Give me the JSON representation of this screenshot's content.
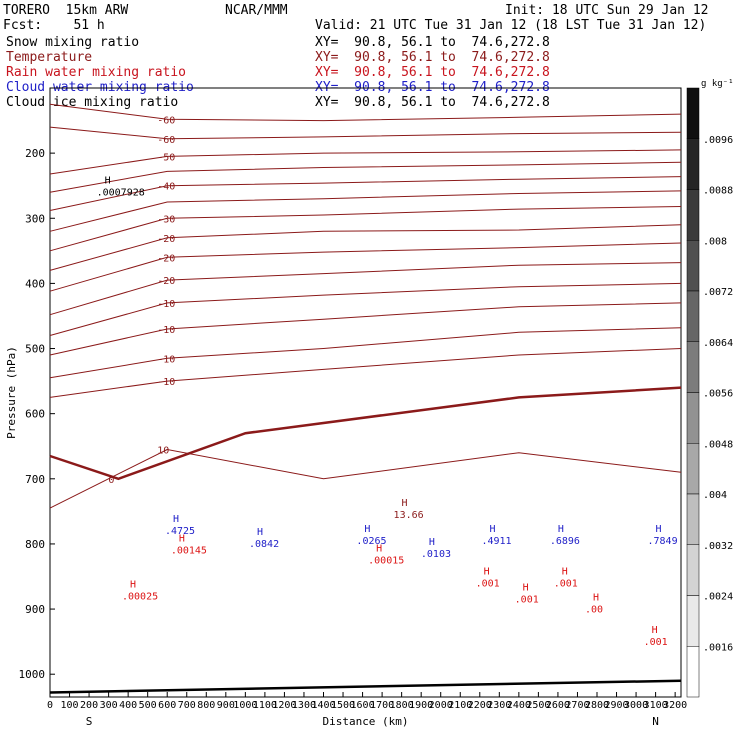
{
  "header": {
    "model": "TORERO  15km ARW",
    "center": "NCAR/MMM",
    "init": "Init: 18 UTC Sun 29 Jan 12",
    "fcst": "Fcst:    51 h",
    "valid": "Valid: 21 UTC Tue 31 Jan 12 (18 LST Tue 31 Jan 12)"
  },
  "fields": [
    {
      "label": "Snow mixing ratio",
      "xy": "XY=  90.8, 56.1 to  74.6,272.8",
      "color": "#000000"
    },
    {
      "label": "Temperature",
      "xy": "XY=  90.8, 56.1 to  74.6,272.8",
      "color": "#8b1a1a"
    },
    {
      "label": "Rain water mixing ratio",
      "xy": "XY=  90.8, 56.1 to  74.6,272.8",
      "color": "#dc1414"
    },
    {
      "label": "Cloud water mixing ratio",
      "xy": "XY=  90.8, 56.1 to  74.6,272.8",
      "color": "#1e1ec8"
    },
    {
      "label": "Cloud ice mixing ratio",
      "xy": "XY=  90.8, 56.1 to  74.6,272.8",
      "color": "#000000"
    }
  ],
  "chart_data": {
    "type": "contour",
    "xlabel": "Distance (km)",
    "ylabel": "Pressure (hPa)",
    "x_ticks": [
      0,
      100,
      200,
      300,
      400,
      500,
      600,
      700,
      800,
      900,
      1000,
      1100,
      1200,
      1300,
      1400,
      1500,
      1600,
      1700,
      1800,
      1900,
      2000,
      2100,
      2200,
      2300,
      2400,
      2500,
      2600,
      2700,
      2800,
      2900,
      3000,
      3100,
      3200
    ],
    "y_ticks": [
      200,
      300,
      400,
      500,
      600,
      700,
      800,
      900,
      1000
    ],
    "xlim": [
      0,
      3230
    ],
    "ylim": [
      100,
      1035
    ],
    "endpoints": {
      "left": "S",
      "right": "N"
    },
    "colorbar": {
      "unit": "g kg⁻¹",
      "labels": [
        ".0016",
        ".0024",
        ".0032",
        ".004",
        ".0048",
        ".0056",
        ".0064",
        ".0072",
        ".008",
        ".0088",
        ".0096"
      ]
    },
    "isotherms": [
      {
        "label": "-60",
        "pressure": [
          125,
          148,
          150,
          145,
          140
        ],
        "x": [
          0,
          600,
          1400,
          2400,
          3230
        ],
        "thick": false
      },
      {
        "label": "-60",
        "pressure": [
          160,
          178,
          175,
          170,
          168
        ],
        "x": [
          0,
          600,
          1400,
          2400,
          3230
        ],
        "thick": false
      },
      {
        "label": "-50",
        "pressure": [
          232,
          205,
          200,
          198,
          195
        ],
        "x": [
          0,
          600,
          1400,
          2400,
          3230
        ],
        "thick": false
      },
      {
        "label": "",
        "pressure": [
          260,
          228,
          222,
          218,
          214
        ],
        "x": [
          0,
          600,
          1400,
          2400,
          3230
        ],
        "thick": false
      },
      {
        "label": "-40",
        "pressure": [
          288,
          250,
          246,
          240,
          236
        ],
        "x": [
          0,
          600,
          1400,
          2400,
          3230
        ],
        "thick": false
      },
      {
        "label": "",
        "pressure": [
          320,
          275,
          270,
          262,
          258
        ],
        "x": [
          0,
          600,
          1400,
          2400,
          3230
        ],
        "thick": false
      },
      {
        "label": "-30",
        "pressure": [
          350,
          300,
          295,
          286,
          282
        ],
        "x": [
          0,
          600,
          1400,
          2400,
          3230
        ],
        "thick": false
      },
      {
        "label": "-20",
        "pressure": [
          380,
          330,
          320,
          318,
          310
        ],
        "x": [
          0,
          600,
          1400,
          2400,
          3230
        ],
        "thick": false
      },
      {
        "label": "-20",
        "pressure": [
          412,
          360,
          352,
          345,
          338
        ],
        "x": [
          0,
          600,
          1400,
          2400,
          3230
        ],
        "thick": false
      },
      {
        "label": "-20",
        "pressure": [
          448,
          395,
          385,
          372,
          368
        ],
        "x": [
          0,
          600,
          1400,
          2400,
          3230
        ],
        "thick": false
      },
      {
        "label": "-10",
        "pressure": [
          480,
          430,
          418,
          405,
          400
        ],
        "x": [
          0,
          600,
          1400,
          2400,
          3230
        ],
        "thick": false
      },
      {
        "label": "-10",
        "pressure": [
          510,
          470,
          455,
          436,
          430
        ],
        "x": [
          0,
          600,
          1400,
          2400,
          3230
        ],
        "thick": false
      },
      {
        "label": "-10",
        "pressure": [
          545,
          515,
          500,
          475,
          468
        ],
        "x": [
          0,
          600,
          1400,
          2400,
          3230
        ],
        "thick": false
      },
      {
        "label": "-10",
        "pressure": [
          575,
          550,
          532,
          510,
          500
        ],
        "x": [
          0,
          600,
          1400,
          2400,
          3230
        ],
        "thick": false
      },
      {
        "label": "0",
        "pressure": [
          665,
          700,
          630,
          575,
          560
        ],
        "x": [
          0,
          350,
          1000,
          2400,
          3230
        ],
        "thick": true
      },
      {
        "label": "10",
        "pressure": [
          745,
          655,
          700,
          660,
          690
        ],
        "x": [
          0,
          600,
          1400,
          2400,
          3230
        ],
        "thick": false
      }
    ],
    "maxima": [
      {
        "kind": "snow",
        "label": ".0007928",
        "x": 300,
        "p": 265
      },
      {
        "kind": "temperature",
        "label": "13.66",
        "x": 1820,
        "p": 760
      },
      {
        "kind": "cloud",
        "label": ".4725",
        "x": 650,
        "p": 785
      },
      {
        "kind": "cloud",
        "label": ".0842",
        "x": 1080,
        "p": 805
      },
      {
        "kind": "cloud",
        "label": ".0265",
        "x": 1630,
        "p": 800
      },
      {
        "kind": "cloud",
        "label": ".0103",
        "x": 1960,
        "p": 820
      },
      {
        "kind": "cloud",
        "label": ".4911",
        "x": 2270,
        "p": 800
      },
      {
        "kind": "cloud",
        "label": ".6896",
        "x": 2620,
        "p": 800
      },
      {
        "kind": "cloud",
        "label": ".7849",
        "x": 3120,
        "p": 800
      },
      {
        "kind": "rain",
        "label": ".00145",
        "x": 680,
        "p": 815
      },
      {
        "kind": "rain",
        "label": ".00015",
        "x": 1690,
        "p": 830
      },
      {
        "kind": "rain",
        "label": ".00025",
        "x": 430,
        "p": 885
      },
      {
        "kind": "rain",
        "label": ".00",
        "x": 2800,
        "p": 905
      },
      {
        "kind": "rain",
        "label": ".001",
        "x": 2240,
        "p": 865
      },
      {
        "kind": "rain",
        "label": ".001",
        "x": 2440,
        "p": 890
      },
      {
        "kind": "rain",
        "label": ".001",
        "x": 2640,
        "p": 865
      },
      {
        "kind": "rain",
        "label": ".001",
        "x": 3100,
        "p": 955
      }
    ]
  }
}
